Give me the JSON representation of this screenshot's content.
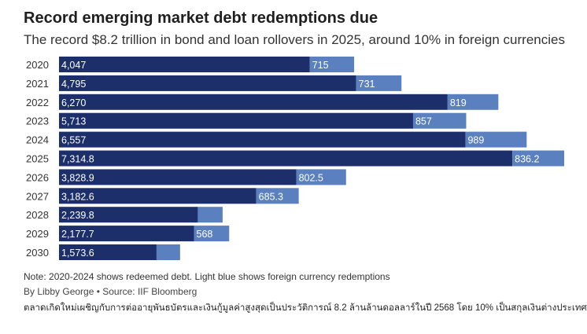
{
  "chart_data": {
    "type": "bar",
    "orientation": "horizontal",
    "stacked": true,
    "title": "Record emerging market debt redemptions due",
    "subtitle": "The record $8.2 trillion in bond and loan rollovers in 2025, around 10% in foreign currencies",
    "categories": [
      "2020",
      "2021",
      "2022",
      "2023",
      "2024",
      "2025",
      "2026",
      "2027",
      "2028",
      "2029",
      "2030"
    ],
    "series": [
      {
        "color": "#1d2f6b",
        "values": [
          4047,
          4795,
          6270,
          5713,
          6557,
          7314.8,
          3828.9,
          3182.6,
          2239.8,
          2177.7,
          1573.6
        ],
        "labels": [
          "4,047",
          "4,795",
          "6,270",
          "5,713",
          "6,557",
          "7,314.8",
          "3,828.9",
          "3,182.6",
          "2,239.8",
          "2,177.7",
          "1,573.6"
        ]
      },
      {
        "color": "#5a80c0",
        "values": [
          715,
          731,
          819,
          857,
          989,
          836.2,
          802.5,
          685.3,
          400,
          568,
          380
        ],
        "labels": [
          "715",
          "731",
          "819",
          "857",
          "989",
          "836.2",
          "802.5",
          "685.3",
          "",
          "568",
          ""
        ]
      }
    ],
    "xlim": [
      0,
      8151
    ],
    "grid": false,
    "legend": "none"
  },
  "note": "Note: 2020-2024 shows redeemed debt. Light blue shows foreign currency redemptions",
  "byline": "By Libby George • Source: IIF Bloomberg",
  "thai_caption": "ตลาดเกิดใหม่เผชิญกับการต่ออายุพันธบัตรและเงินกู้มูลค่าสูงสุดเป็นประวัติการณ์ 8.2 ล้านล้านดอลลาร์ในปี 2568 โดย 10% เป็นสกุลเงินต่างประเทศ"
}
